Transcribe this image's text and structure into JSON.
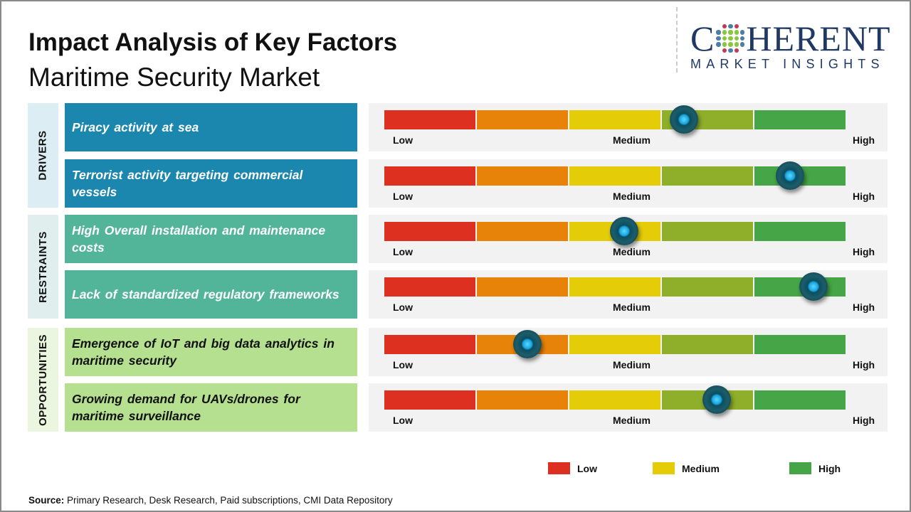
{
  "title": "Impact Analysis of Key Factors",
  "subtitle": "Maritime Security Market",
  "logo": {
    "word": "COHERENT",
    "tagline": "MARKET INSIGHTS"
  },
  "scale_labels": {
    "low": "Low",
    "medium": "Medium",
    "high": "High"
  },
  "segment_colors": [
    "#dd3020",
    "#e8830a",
    "#e5cc08",
    "#8fae2a",
    "#46a546"
  ],
  "categories": [
    {
      "name": "DRIVERS",
      "bg": "#dcedf4",
      "label_bg": "#1b87ae",
      "label_color": "#ffffff"
    },
    {
      "name": "RESTRAINTS",
      "bg": "#e0eeee",
      "label_bg": "#52b59a",
      "label_color": "#ffffff"
    },
    {
      "name": "OPPORTUNITIES",
      "bg": "#eaf6e0",
      "label_bg": "#b5e08f",
      "label_color": "#111111"
    }
  ],
  "factors": [
    {
      "category": 0,
      "text": "Piracy activity at sea",
      "impact": 0.65
    },
    {
      "category": 0,
      "text": "Terrorist activity targeting commercial vessels",
      "impact": 0.88
    },
    {
      "category": 1,
      "text": "High Overall installation and maintenance costs",
      "impact": 0.52
    },
    {
      "category": 1,
      "text": "Lack of standardized regulatory frameworks",
      "impact": 0.93
    },
    {
      "category": 2,
      "text": "Emergence of IoT and big data analytics in maritime security",
      "impact": 0.31
    },
    {
      "category": 2,
      "text": "Growing demand for UAVs/drones for maritime surveillance",
      "impact": 0.72
    }
  ],
  "legend": [
    {
      "label": "Low",
      "color": "#dd3020"
    },
    {
      "label": "Medium",
      "color": "#e5cc08"
    },
    {
      "label": "High",
      "color": "#46a546"
    }
  ],
  "source": {
    "label": "Source:",
    "text": " Primary Research, Desk Research, Paid subscriptions, CMI Data Repository"
  }
}
